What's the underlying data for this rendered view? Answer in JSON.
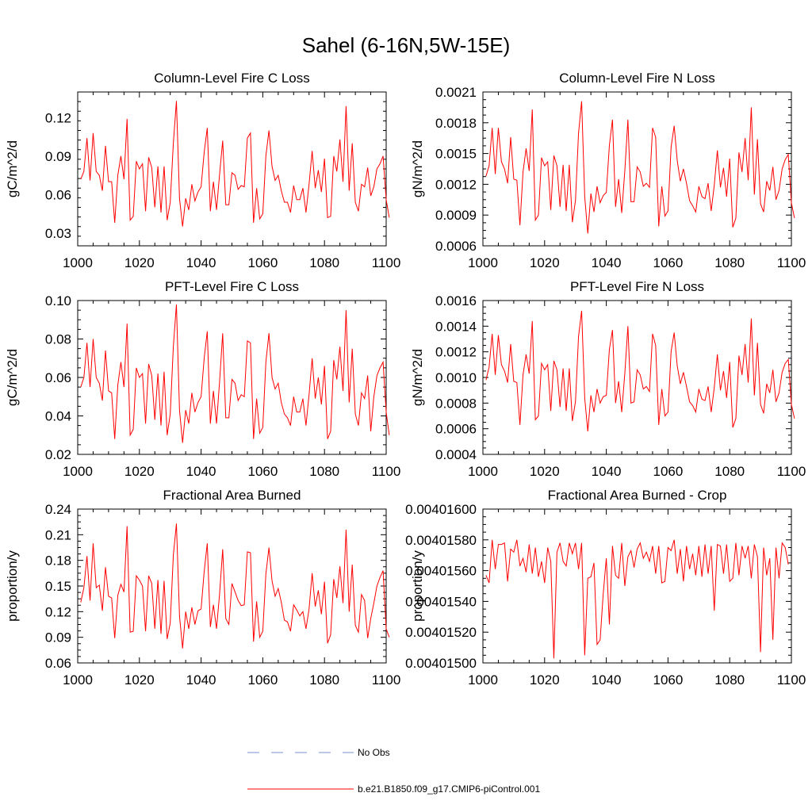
{
  "figure": {
    "title": "Sahel (6-16N,5W-15E)"
  },
  "legend": {
    "obs_label": "No Obs",
    "obs_color": "#7b8fd0",
    "model_label": "b.e21.B1850.f09_g17.CMIP6-piControl.001",
    "model_color": "#ff0000"
  },
  "chart_data": [
    {
      "type": "line",
      "title": "Column-Level Fire C Loss",
      "xlabel": "",
      "ylabel": "gC/m^2/d",
      "xlim": [
        1000,
        1100
      ],
      "ylim": [
        0.02,
        0.14
      ],
      "xticks": [
        1000,
        1020,
        1040,
        1060,
        1080,
        1100
      ],
      "xtick_labels": [
        "1000",
        "1020",
        "1040",
        "1060",
        "1080",
        "1100"
      ],
      "yticks": [
        0.03,
        0.06,
        0.09,
        0.12
      ],
      "ytick_labels": [
        "0.03",
        "0.06",
        "0.09",
        "0.12"
      ],
      "x_start": 1001,
      "series": [
        {
          "name": "b.e21.B1850.f09_g17.CMIP6-piControl.001",
          "color": "#ff0000",
          "values": [
            0.072,
            0.078,
            0.104,
            0.071,
            0.108,
            0.078,
            0.075,
            0.063,
            0.098,
            0.07,
            0.07,
            0.038,
            0.075,
            0.09,
            0.072,
            0.119,
            0.04,
            0.043,
            0.086,
            0.08,
            0.084,
            0.047,
            0.089,
            0.081,
            0.05,
            0.082,
            0.046,
            0.082,
            0.04,
            0.054,
            0.1,
            0.133,
            0.057,
            0.035,
            0.057,
            0.048,
            0.068,
            0.055,
            0.062,
            0.066,
            0.093,
            0.112,
            0.047,
            0.07,
            0.048,
            0.076,
            0.102,
            0.052,
            0.052,
            0.077,
            0.075,
            0.064,
            0.067,
            0.066,
            0.104,
            0.108,
            0.038,
            0.065,
            0.041,
            0.045,
            0.09,
            0.11,
            0.082,
            0.071,
            0.075,
            0.063,
            0.054,
            0.054,
            0.046,
            0.067,
            0.056,
            0.056,
            0.065,
            0.046,
            0.068,
            0.094,
            0.065,
            0.079,
            0.062,
            0.088,
            0.042,
            0.043,
            0.09,
            0.078,
            0.103,
            0.07,
            0.129,
            0.063,
            0.1,
            0.054,
            0.047,
            0.068,
            0.066,
            0.081,
            0.059,
            0.066,
            0.08,
            0.084,
            0.09,
            0.056,
            0.042
          ]
        }
      ]
    },
    {
      "type": "line",
      "title": "Column-Level Fire N Loss",
      "xlabel": "",
      "ylabel": "gN/m^2/d",
      "xlim": [
        1000,
        1100
      ],
      "ylim": [
        0.0006,
        0.0021
      ],
      "xticks": [
        1000,
        1020,
        1040,
        1060,
        1080,
        1100
      ],
      "xtick_labels": [
        "1000",
        "1020",
        "1040",
        "1060",
        "1080",
        "1100"
      ],
      "yticks": [
        0.0006,
        0.0009,
        0.0012,
        0.0015,
        0.0018,
        0.0021
      ],
      "ytick_labels": [
        "0.0006",
        "0.0009",
        "0.0012",
        "0.0015",
        "0.0018",
        "0.0021"
      ],
      "x_start": 1001,
      "series": [
        {
          "name": "b.e21.B1850.f09_g17.CMIP6-piControl.001",
          "color": "#ff0000",
          "values": [
            0.00128,
            0.00138,
            0.00175,
            0.0013,
            0.00175,
            0.00142,
            0.00135,
            0.00121,
            0.00166,
            0.00125,
            0.00124,
            0.0008,
            0.00132,
            0.00155,
            0.00133,
            0.00193,
            0.00085,
            0.0009,
            0.00146,
            0.00138,
            0.00142,
            0.00095,
            0.00148,
            0.00138,
            0.00098,
            0.00139,
            0.00094,
            0.00139,
            0.00083,
            0.00104,
            0.0017,
            0.00201,
            0.00108,
            0.00072,
            0.00111,
            0.00093,
            0.00118,
            0.00102,
            0.00109,
            0.00112,
            0.00158,
            0.00183,
            0.00098,
            0.00125,
            0.00092,
            0.00133,
            0.00183,
            0.00103,
            0.00103,
            0.00137,
            0.00132,
            0.00118,
            0.00121,
            0.00117,
            0.00175,
            0.00166,
            0.00079,
            0.00118,
            0.00089,
            0.00094,
            0.00156,
            0.00177,
            0.00143,
            0.00123,
            0.00135,
            0.00121,
            0.00104,
            0.00099,
            0.00093,
            0.00118,
            0.00108,
            0.00106,
            0.00121,
            0.00094,
            0.00119,
            0.00153,
            0.00117,
            0.00136,
            0.00108,
            0.00145,
            0.00078,
            0.00087,
            0.00151,
            0.00132,
            0.00165,
            0.00124,
            0.00195,
            0.0011,
            0.00164,
            0.00101,
            0.00093,
            0.00123,
            0.00114,
            0.00137,
            0.00105,
            0.00114,
            0.00135,
            0.00144,
            0.00149,
            0.00102,
            0.00087
          ]
        }
      ]
    },
    {
      "type": "line",
      "title": "PFT-Level Fire C Loss",
      "xlabel": "",
      "ylabel": "gC/m^2/d",
      "xlim": [
        1000,
        1100
      ],
      "ylim": [
        0.02,
        0.1
      ],
      "xticks": [
        1000,
        1020,
        1040,
        1060,
        1080,
        1100
      ],
      "xtick_labels": [
        "1000",
        "1020",
        "1040",
        "1060",
        "1080",
        "1100"
      ],
      "yticks": [
        0.02,
        0.04,
        0.06,
        0.08,
        0.1
      ],
      "ytick_labels": [
        "0.02",
        "0.04",
        "0.06",
        "0.08",
        "0.10"
      ],
      "x_start": 1001,
      "series": [
        {
          "name": "b.e21.B1850.f09_g17.CMIP6-piControl.001",
          "color": "#ff0000",
          "values": [
            0.055,
            0.06,
            0.078,
            0.055,
            0.08,
            0.06,
            0.057,
            0.048,
            0.074,
            0.053,
            0.052,
            0.028,
            0.056,
            0.068,
            0.055,
            0.088,
            0.03,
            0.033,
            0.065,
            0.06,
            0.062,
            0.036,
            0.067,
            0.061,
            0.038,
            0.062,
            0.035,
            0.063,
            0.03,
            0.041,
            0.076,
            0.098,
            0.043,
            0.026,
            0.043,
            0.036,
            0.052,
            0.042,
            0.047,
            0.05,
            0.07,
            0.084,
            0.036,
            0.053,
            0.036,
            0.058,
            0.083,
            0.039,
            0.039,
            0.059,
            0.057,
            0.048,
            0.051,
            0.05,
            0.079,
            0.078,
            0.028,
            0.049,
            0.031,
            0.034,
            0.068,
            0.083,
            0.06,
            0.054,
            0.057,
            0.047,
            0.041,
            0.039,
            0.035,
            0.05,
            0.042,
            0.042,
            0.049,
            0.035,
            0.051,
            0.07,
            0.049,
            0.06,
            0.046,
            0.066,
            0.028,
            0.032,
            0.069,
            0.059,
            0.076,
            0.053,
            0.095,
            0.047,
            0.075,
            0.041,
            0.035,
            0.052,
            0.049,
            0.061,
            0.032,
            0.05,
            0.061,
            0.065,
            0.068,
            0.042,
            0.03
          ]
        }
      ]
    },
    {
      "type": "line",
      "title": "PFT-Level Fire N Loss",
      "xlabel": "",
      "ylabel": "gN/m^2/d",
      "xlim": [
        1000,
        1100
      ],
      "ylim": [
        0.0004,
        0.0016
      ],
      "xticks": [
        1000,
        1020,
        1040,
        1060,
        1080,
        1100
      ],
      "xtick_labels": [
        "1000",
        "1020",
        "1040",
        "1060",
        "1080",
        "1100"
      ],
      "yticks": [
        0.0004,
        0.0006,
        0.0008,
        0.001,
        0.0012,
        0.0014,
        0.0016
      ],
      "ytick_labels": [
        "0.0004",
        "0.0006",
        "0.0008",
        "0.0010",
        "0.0012",
        "0.0014",
        "0.0016"
      ],
      "x_start": 1001,
      "series": [
        {
          "name": "b.e21.B1850.f09_g17.CMIP6-piControl.001",
          "color": "#ff0000",
          "values": [
            0.00098,
            0.00108,
            0.00134,
            0.00102,
            0.00133,
            0.0011,
            0.00105,
            0.00096,
            0.00126,
            0.00097,
            0.00096,
            0.00063,
            0.00102,
            0.00118,
            0.00103,
            0.00144,
            0.00067,
            0.0007,
            0.00111,
            0.00106,
            0.0011,
            0.00074,
            0.00113,
            0.00106,
            0.00077,
            0.00107,
            0.00074,
            0.00107,
            0.00066,
            0.00081,
            0.00132,
            0.00152,
            0.00084,
            0.00058,
            0.00086,
            0.00073,
            0.00091,
            0.0008,
            0.00085,
            0.00086,
            0.00122,
            0.00137,
            0.0008,
            0.00097,
            0.00073,
            0.00103,
            0.0014,
            0.0008,
            0.00081,
            0.00106,
            0.00102,
            0.00091,
            0.00093,
            0.00089,
            0.00134,
            0.00125,
            0.00063,
            0.00091,
            0.0007,
            0.00073,
            0.0012,
            0.00135,
            0.00109,
            0.00095,
            0.00104,
            0.00093,
            0.00081,
            0.00078,
            0.00073,
            0.00091,
            0.00083,
            0.00082,
            0.00093,
            0.00073,
            0.00092,
            0.00118,
            0.0009,
            0.00105,
            0.00084,
            0.00112,
            0.00061,
            0.00068,
            0.00117,
            0.00102,
            0.00126,
            0.00096,
            0.00146,
            0.00086,
            0.00127,
            0.00079,
            0.00072,
            0.00095,
            0.00088,
            0.00106,
            0.00081,
            0.00088,
            0.00104,
            0.00111,
            0.00114,
            0.00079,
            0.00068
          ]
        }
      ]
    },
    {
      "type": "line",
      "title": "Fractional Area Burned",
      "xlabel": "",
      "ylabel": "proportion/y",
      "xlim": [
        1000,
        1100
      ],
      "ylim": [
        0.06,
        0.24
      ],
      "xticks": [
        1000,
        1020,
        1040,
        1060,
        1080,
        1100
      ],
      "xtick_labels": [
        "1000",
        "1020",
        "1040",
        "1060",
        "1080",
        "1100"
      ],
      "yticks": [
        0.06,
        0.09,
        0.12,
        0.15,
        0.18,
        0.21,
        0.24
      ],
      "ytick_labels": [
        "0.06",
        "0.09",
        "0.12",
        "0.15",
        "0.18",
        "0.21",
        "0.24"
      ],
      "x_start": 1001,
      "series": [
        {
          "name": "b.e21.B1850.f09_g17.CMIP6-piControl.001",
          "color": "#ff0000",
          "values": [
            0.131,
            0.148,
            0.185,
            0.133,
            0.2,
            0.148,
            0.151,
            0.121,
            0.172,
            0.138,
            0.136,
            0.089,
            0.139,
            0.152,
            0.143,
            0.22,
            0.096,
            0.097,
            0.162,
            0.157,
            0.15,
            0.097,
            0.162,
            0.153,
            0.1,
            0.157,
            0.094,
            0.156,
            0.088,
            0.107,
            0.186,
            0.223,
            0.115,
            0.077,
            0.12,
            0.1,
            0.125,
            0.105,
            0.121,
            0.123,
            0.167,
            0.2,
            0.102,
            0.128,
            0.1,
            0.141,
            0.193,
            0.112,
            0.105,
            0.153,
            0.143,
            0.133,
            0.127,
            0.128,
            0.19,
            0.189,
            0.085,
            0.132,
            0.09,
            0.097,
            0.164,
            0.195,
            0.156,
            0.138,
            0.147,
            0.131,
            0.11,
            0.108,
            0.097,
            0.128,
            0.122,
            0.115,
            0.12,
            0.1,
            0.123,
            0.165,
            0.126,
            0.145,
            0.117,
            0.155,
            0.083,
            0.093,
            0.158,
            0.136,
            0.173,
            0.13,
            0.216,
            0.12,
            0.175,
            0.104,
            0.096,
            0.14,
            0.133,
            0.089,
            0.112,
            0.13,
            0.15,
            0.16,
            0.168,
            0.1,
            0.09
          ]
        }
      ]
    },
    {
      "type": "line",
      "title": "Fractional Area Burned - Crop",
      "xlabel": "",
      "ylabel": "proportion/y",
      "xlim": [
        1000,
        1100
      ],
      "ylim": [
        0.004015,
        0.004016
      ],
      "xticks": [
        1000,
        1020,
        1040,
        1060,
        1080,
        1100
      ],
      "xtick_labels": [
        "1000",
        "1020",
        "1040",
        "1060",
        "1080",
        "1100"
      ],
      "yticks": [
        0.004015,
        0.0040152,
        0.0040154,
        0.0040156,
        0.0040158,
        0.004016
      ],
      "ytick_labels": [
        "0.00401500",
        "0.00401520",
        "0.00401540",
        "0.00401560",
        "0.00401580",
        "0.00401600"
      ],
      "x_start": 1001,
      "series": [
        {
          "name": "b.e21.B1850.f09_g17.CMIP6-piControl.001",
          "color": "#ff0000",
          "values": [
            0.00401557,
            0.00401552,
            0.0040158,
            0.00401561,
            0.00401577,
            0.00401577,
            0.00401578,
            0.00401553,
            0.00401574,
            0.00401572,
            0.0040158,
            0.00401563,
            0.00401568,
            0.00401559,
            0.00401577,
            0.00401558,
            0.00401575,
            0.00401556,
            0.00401566,
            0.00401552,
            0.00401575,
            0.00401566,
            0.00401503,
            0.00401572,
            0.00401578,
            0.00401566,
            0.00401563,
            0.00401578,
            0.00401571,
            0.00401578,
            0.00401561,
            0.00401578,
            0.00401505,
            0.00401555,
            0.00401556,
            0.00401565,
            0.00401512,
            0.00401515,
            0.00401545,
            0.00401568,
            0.00401525,
            0.00401576,
            0.00401557,
            0.00401555,
            0.00401578,
            0.0040155,
            0.00401569,
            0.00401573,
            0.00401562,
            0.00401574,
            0.00401578,
            0.00401568,
            0.00401572,
            0.00401566,
            0.00401576,
            0.00401558,
            0.00401576,
            0.00401552,
            0.00401553,
            0.00401575,
            0.00401573,
            0.0040158,
            0.00401558,
            0.00401574,
            0.00401553,
            0.00401576,
            0.00401561,
            0.00401571,
            0.00401557,
            0.00401576,
            0.00401556,
            0.00401577,
            0.00401558,
            0.00401576,
            0.00401534,
            0.00401577,
            0.00401576,
            0.00401558,
            0.00401577,
            0.00401553,
            0.00401555,
            0.00401578,
            0.00401557,
            0.00401576,
            0.00401568,
            0.00401576,
            0.00401555,
            0.00401577,
            0.00401569,
            0.00401507,
            0.00401575,
            0.00401557,
            0.00401568,
            0.00401515,
            0.00401575,
            0.00401555,
            0.00401578,
            0.00401575,
            0.00401564
          ]
        }
      ]
    }
  ]
}
